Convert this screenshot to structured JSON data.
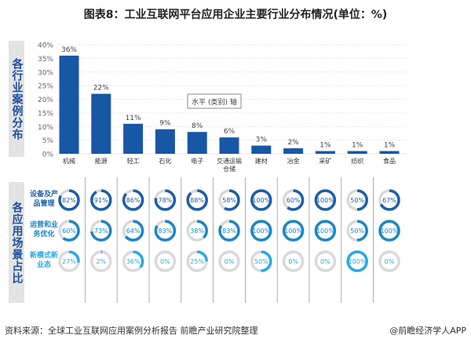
{
  "title": "图表8：工业互联网平台应用企业主要行业分布情况(单位：%)",
  "top_label": "各行业案例分布",
  "bottom_label": "各应用场景占比",
  "axis_tooltip": "水平 (类别) 轴",
  "source": "资料来源：全球工业互联网应用案例分析报告 前瞻产业研究院整理",
  "credit": "@前瞻经济学人APP",
  "colors": {
    "bar": "#1757a6",
    "row1": "#1e5ea8",
    "row2": "#1b86c6",
    "row3": "#2aa9e0",
    "track": "#d9d9d9",
    "label": "#1c4f9c"
  },
  "chart_data": [
    {
      "type": "bar",
      "categories": [
        "机械",
        "能源",
        "轻工",
        "石化",
        "电子",
        "交通运输仓储",
        "建材",
        "冶金",
        "采矿",
        "纺织",
        "食品"
      ],
      "values": [
        36,
        22,
        11,
        9,
        8,
        6,
        3,
        2,
        1,
        1,
        1
      ],
      "data_labels": [
        "36%",
        "22%",
        "11%",
        "9%",
        "8%",
        "6%",
        "3%",
        "2%",
        "1%",
        "1%",
        "1%"
      ],
      "ylim": [
        0,
        40
      ],
      "yticks": [
        "0%",
        "5%",
        "10%",
        "15%",
        "20%",
        "25%",
        "30%",
        "35%",
        "40%"
      ],
      "grid": true
    },
    {
      "type": "donut-matrix",
      "rows": [
        {
          "name": "设备及产品管理",
          "values": [
            82,
            91,
            86,
            78,
            88,
            58,
            100,
            60,
            100,
            50,
            67
          ]
        },
        {
          "name": "运营和业务优化",
          "values": [
            60,
            73,
            64,
            83,
            38,
            83,
            100,
            100,
            100,
            50,
            100
          ]
        },
        {
          "name": "新模式新业态",
          "values": [
            27,
            2,
            36,
            0,
            25,
            0,
            50,
            0,
            0,
            100,
            0
          ]
        }
      ]
    }
  ]
}
